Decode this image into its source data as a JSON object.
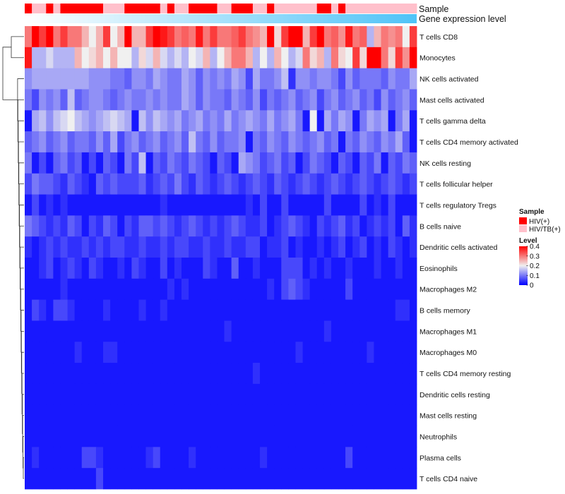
{
  "chart_data": {
    "type": "heatmap",
    "annotations": {
      "sample_label": "Sample",
      "gene_label": "Gene expression level",
      "sample_groups": [
        "HIV(+)",
        "HIV/TB(+)",
        "HIV/TB(+)",
        "HIV(+)",
        "HIV/TB(+)",
        "HIV(+)",
        "HIV(+)",
        "HIV(+)",
        "HIV(+)",
        "HIV(+)",
        "HIV(+)",
        "HIV/TB(+)",
        "HIV/TB(+)",
        "HIV/TB(+)",
        "HIV(+)",
        "HIV(+)",
        "HIV(+)",
        "HIV(+)",
        "HIV(+)",
        "HIV/TB(+)",
        "HIV(+)",
        "HIV/TB(+)",
        "HIV/TB(+)",
        "HIV(+)",
        "HIV(+)",
        "HIV(+)",
        "HIV(+)",
        "HIV/TB(+)",
        "HIV/TB(+)",
        "HIV(+)",
        "HIV(+)",
        "HIV(+)",
        "HIV/TB(+)",
        "HIV/TB(+)",
        "HIV(+)",
        "HIV/TB(+)",
        "HIV/TB(+)",
        "HIV/TB(+)",
        "HIV/TB(+)",
        "HIV/TB(+)",
        "HIV/TB(+)",
        "HIV(+)",
        "HIV(+)",
        "HIV/TB(+)",
        "HIV(+)",
        "HIV/TB(+)",
        "HIV/TB(+)",
        "HIV/TB(+)",
        "HIV/TB(+)",
        "HIV/TB(+)",
        "HIV/TB(+)",
        "HIV/TB(+)",
        "HIV/TB(+)",
        "HIV/TB(+)",
        "HIV/TB(+)"
      ]
    },
    "rows": [
      "T cells CD8",
      "Monocytes",
      "NK cells activated",
      "Mast cells activated",
      "T cells gamma delta",
      "T cells CD4 memory activated",
      "NK cells resting",
      "T cells follicular helper",
      "T cells regulatory  Tregs",
      "B cells naive",
      "Dendritic cells activated",
      "Eosinophils",
      "Macrophages M2",
      "B cells memory",
      "Macrophages M1",
      "Macrophages M0",
      "T cells CD4 memory resting",
      "Dendritic cells resting",
      "Mast cells resting",
      "Neutrophils",
      "Plasma cells",
      "T cells CD4 naive"
    ],
    "n_columns": 55,
    "values": [
      [
        0.3,
        0.4,
        0.35,
        0.4,
        0.3,
        0.35,
        0.3,
        0.3,
        0.25,
        0.2,
        0.25,
        0.35,
        0.2,
        0.25,
        0.4,
        0.25,
        0.25,
        0.35,
        0.4,
        0.38,
        0.35,
        0.3,
        0.32,
        0.3,
        0.38,
        0.3,
        0.35,
        0.3,
        0.3,
        0.32,
        0.35,
        0.3,
        0.28,
        0.25,
        0.4,
        0.22,
        0.35,
        0.4,
        0.4,
        0.25,
        0.35,
        0.4,
        0.3,
        0.32,
        0.28,
        0.38,
        0.3,
        0.32,
        0.15,
        0.25,
        0.3,
        0.28,
        0.3,
        0.2,
        0.35
      ],
      [
        0.38,
        0.15,
        0.15,
        0.18,
        0.15,
        0.15,
        0.15,
        0.25,
        0.2,
        0.22,
        0.25,
        0.2,
        0.25,
        0.2,
        0.2,
        0.15,
        0.22,
        0.18,
        0.25,
        0.18,
        0.15,
        0.18,
        0.15,
        0.2,
        0.18,
        0.25,
        0.15,
        0.2,
        0.25,
        0.3,
        0.3,
        0.25,
        0.15,
        0.2,
        0.15,
        0.25,
        0.2,
        0.15,
        0.18,
        0.3,
        0.22,
        0.25,
        0.15,
        0.3,
        0.22,
        0.2,
        0.35,
        0.22,
        0.4,
        0.4,
        0.3,
        0.22,
        0.35,
        0.28,
        0.4
      ],
      [
        0.12,
        0.14,
        0.14,
        0.14,
        0.14,
        0.14,
        0.14,
        0.14,
        0.14,
        0.12,
        0.12,
        0.12,
        0.1,
        0.1,
        0.08,
        0.12,
        0.12,
        0.1,
        0.14,
        0.12,
        0.1,
        0.1,
        0.14,
        0.12,
        0.08,
        0.12,
        0.1,
        0.12,
        0.1,
        0.14,
        0.12,
        0.06,
        0.14,
        0.1,
        0.1,
        0.12,
        0.16,
        0.04,
        0.12,
        0.12,
        0.1,
        0.12,
        0.12,
        0.1,
        0.06,
        0.12,
        0.08,
        0.1,
        0.1,
        0.1,
        0.08,
        0.12,
        0.1,
        0.1,
        0.14
      ],
      [
        0.1,
        0.06,
        0.12,
        0.1,
        0.12,
        0.08,
        0.16,
        0.08,
        0.1,
        0.12,
        0.12,
        0.1,
        0.08,
        0.1,
        0.12,
        0.1,
        0.1,
        0.12,
        0.1,
        0.12,
        0.1,
        0.1,
        0.14,
        0.12,
        0.08,
        0.12,
        0.1,
        0.1,
        0.08,
        0.12,
        0.1,
        0.08,
        0.12,
        0.06,
        0.1,
        0.08,
        0.1,
        0.12,
        0.08,
        0.1,
        0.12,
        0.06,
        0.1,
        0.12,
        0.08,
        0.1,
        0.12,
        0.08,
        0.1,
        0.06,
        0.12,
        0.08,
        0.1,
        0.12,
        0.08
      ],
      [
        0.02,
        0.14,
        0.16,
        0.12,
        0.16,
        0.18,
        0.2,
        0.16,
        0.14,
        0.12,
        0.14,
        0.16,
        0.18,
        0.16,
        0.14,
        0.02,
        0.16,
        0.12,
        0.16,
        0.14,
        0.12,
        0.14,
        0.1,
        0.12,
        0.14,
        0.1,
        0.12,
        0.1,
        0.14,
        0.1,
        0.12,
        0.14,
        0.12,
        0.1,
        0.14,
        0.1,
        0.12,
        0.14,
        0.1,
        0.02,
        0.2,
        0.02,
        0.14,
        0.1,
        0.14,
        0.12,
        0.02,
        0.1,
        0.14,
        0.12,
        0.14,
        0.02,
        0.1,
        0.14,
        0.02
      ],
      [
        0.08,
        0.1,
        0.12,
        0.08,
        0.1,
        0.12,
        0.08,
        0.1,
        0.1,
        0.08,
        0.12,
        0.08,
        0.14,
        0.06,
        0.1,
        0.12,
        0.08,
        0.1,
        0.12,
        0.08,
        0.1,
        0.12,
        0.08,
        0.16,
        0.1,
        0.08,
        0.12,
        0.08,
        0.1,
        0.1,
        0.12,
        0.02,
        0.1,
        0.08,
        0.12,
        0.1,
        0.08,
        0.12,
        0.1,
        0.08,
        0.1,
        0.12,
        0.08,
        0.1,
        0.02,
        0.1,
        0.08,
        0.12,
        0.1,
        0.08,
        0.12,
        0.1,
        0.14,
        0.08,
        0.02
      ],
      [
        0.1,
        0.02,
        0.06,
        0.02,
        0.08,
        0.1,
        0.06,
        0.08,
        0.02,
        0.06,
        0.02,
        0.08,
        0.06,
        0.02,
        0.1,
        0.06,
        0.16,
        0.02,
        0.08,
        0.06,
        0.1,
        0.08,
        0.06,
        0.1,
        0.08,
        0.06,
        0.02,
        0.08,
        0.06,
        0.02,
        0.14,
        0.12,
        0.1,
        0.06,
        0.08,
        0.1,
        0.06,
        0.08,
        0.02,
        0.06,
        0.1,
        0.08,
        0.06,
        0.02,
        0.08,
        0.06,
        0.02,
        0.08,
        0.06,
        0.1,
        0.02,
        0.08,
        0.06,
        0.1,
        0.08
      ],
      [
        0.06,
        0.1,
        0.08,
        0.08,
        0.06,
        0.04,
        0.08,
        0.06,
        0.04,
        0.02,
        0.08,
        0.06,
        0.08,
        0.06,
        0.06,
        0.06,
        0.08,
        0.04,
        0.06,
        0.08,
        0.06,
        0.1,
        0.06,
        0.04,
        0.08,
        0.06,
        0.04,
        0.06,
        0.08,
        0.06,
        0.04,
        0.06,
        0.08,
        0.06,
        0.04,
        0.08,
        0.06,
        0.04,
        0.06,
        0.08,
        0.06,
        0.04,
        0.06,
        0.08,
        0.06,
        0.04,
        0.06,
        0.08,
        0.06,
        0.04,
        0.06,
        0.08,
        0.06,
        0.04,
        0.06
      ],
      [
        0.02,
        0.06,
        0.02,
        0.04,
        0.02,
        0.04,
        0.02,
        0.02,
        0.02,
        0.02,
        0.02,
        0.02,
        0.02,
        0.02,
        0.02,
        0.02,
        0.02,
        0.02,
        0.02,
        0.04,
        0.02,
        0.02,
        0.02,
        0.02,
        0.02,
        0.02,
        0.02,
        0.02,
        0.02,
        0.02,
        0.02,
        0.04,
        0.02,
        0.06,
        0.02,
        0.02,
        0.06,
        0.02,
        0.02,
        0.02,
        0.02,
        0.02,
        0.06,
        0.02,
        0.02,
        0.02,
        0.02,
        0.06,
        0.02,
        0.04,
        0.02,
        0.06,
        0.02,
        0.02,
        0.02
      ],
      [
        0.1,
        0.08,
        0.06,
        0.04,
        0.06,
        0.04,
        0.08,
        0.06,
        0.02,
        0.06,
        0.04,
        0.08,
        0.06,
        0.02,
        0.06,
        0.04,
        0.08,
        0.08,
        0.06,
        0.08,
        0.06,
        0.04,
        0.06,
        0.08,
        0.06,
        0.04,
        0.06,
        0.04,
        0.06,
        0.08,
        0.06,
        0.04,
        0.04,
        0.06,
        0.02,
        0.04,
        0.06,
        0.08,
        0.06,
        0.04,
        0.02,
        0.06,
        0.04,
        0.06,
        0.08,
        0.04,
        0.06,
        0.02,
        0.04,
        0.06,
        0.04,
        0.06,
        0.02,
        0.08,
        0.04
      ],
      [
        0.04,
        0.02,
        0.04,
        0.06,
        0.04,
        0.06,
        0.04,
        0.04,
        0.06,
        0.04,
        0.06,
        0.04,
        0.06,
        0.06,
        0.04,
        0.04,
        0.06,
        0.04,
        0.04,
        0.06,
        0.04,
        0.06,
        0.06,
        0.04,
        0.04,
        0.06,
        0.04,
        0.04,
        0.06,
        0.04,
        0.04,
        0.06,
        0.06,
        0.02,
        0.04,
        0.04,
        0.06,
        0.02,
        0.04,
        0.02,
        0.02,
        0.04,
        0.02,
        0.04,
        0.06,
        0.02,
        0.04,
        0.06,
        0.02,
        0.04,
        0.02,
        0.06,
        0.04,
        0.02,
        0.04
      ],
      [
        0.02,
        0.02,
        0.04,
        0.06,
        0.02,
        0.04,
        0.06,
        0.04,
        0.02,
        0.06,
        0.04,
        0.02,
        0.02,
        0.04,
        0.02,
        0.06,
        0.04,
        0.02,
        0.02,
        0.06,
        0.02,
        0.04,
        0.02,
        0.02,
        0.02,
        0.06,
        0.04,
        0.02,
        0.02,
        0.08,
        0.02,
        0.02,
        0.04,
        0.02,
        0.02,
        0.02,
        0.06,
        0.06,
        0.06,
        0.02,
        0.04,
        0.02,
        0.04,
        0.02,
        0.02,
        0.04,
        0.02,
        0.02,
        0.02,
        0.04,
        0.02,
        0.02,
        0.04,
        0.02,
        0.02
      ],
      [
        0.02,
        0.02,
        0.02,
        0.02,
        0.02,
        0.04,
        0.02,
        0.02,
        0.02,
        0.02,
        0.02,
        0.02,
        0.02,
        0.02,
        0.02,
        0.02,
        0.02,
        0.02,
        0.02,
        0.02,
        0.04,
        0.02,
        0.04,
        0.02,
        0.02,
        0.02,
        0.02,
        0.02,
        0.02,
        0.02,
        0.02,
        0.02,
        0.02,
        0.02,
        0.04,
        0.02,
        0.06,
        0.08,
        0.06,
        0.04,
        0.02,
        0.02,
        0.02,
        0.02,
        0.02,
        0.06,
        0.02,
        0.02,
        0.02,
        0.02,
        0.02,
        0.02,
        0.02,
        0.02,
        0.02
      ],
      [
        0.02,
        0.06,
        0.04,
        0.02,
        0.06,
        0.06,
        0.04,
        0.02,
        0.02,
        0.02,
        0.02,
        0.04,
        0.02,
        0.02,
        0.02,
        0.02,
        0.04,
        0.02,
        0.02,
        0.04,
        0.02,
        0.02,
        0.02,
        0.02,
        0.02,
        0.02,
        0.02,
        0.02,
        0.02,
        0.02,
        0.02,
        0.02,
        0.02,
        0.02,
        0.02,
        0.02,
        0.02,
        0.02,
        0.02,
        0.02,
        0.02,
        0.02,
        0.02,
        0.02,
        0.02,
        0.02,
        0.02,
        0.02,
        0.02,
        0.02,
        0.02,
        0.02,
        0.04,
        0.04,
        0.02
      ],
      [
        0.02,
        0.02,
        0.02,
        0.02,
        0.02,
        0.02,
        0.02,
        0.02,
        0.02,
        0.02,
        0.02,
        0.02,
        0.02,
        0.02,
        0.02,
        0.02,
        0.02,
        0.02,
        0.02,
        0.02,
        0.02,
        0.02,
        0.02,
        0.02,
        0.02,
        0.02,
        0.02,
        0.02,
        0.04,
        0.02,
        0.02,
        0.02,
        0.02,
        0.02,
        0.02,
        0.02,
        0.02,
        0.02,
        0.02,
        0.02,
        0.02,
        0.02,
        0.04,
        0.02,
        0.02,
        0.02,
        0.02,
        0.02,
        0.02,
        0.02,
        0.02,
        0.02,
        0.02,
        0.02,
        0.02
      ],
      [
        0.02,
        0.02,
        0.02,
        0.02,
        0.02,
        0.02,
        0.02,
        0.04,
        0.02,
        0.02,
        0.02,
        0.04,
        0.04,
        0.02,
        0.02,
        0.02,
        0.02,
        0.02,
        0.02,
        0.02,
        0.02,
        0.02,
        0.02,
        0.02,
        0.02,
        0.02,
        0.02,
        0.02,
        0.02,
        0.02,
        0.02,
        0.02,
        0.02,
        0.02,
        0.02,
        0.02,
        0.02,
        0.02,
        0.04,
        0.02,
        0.02,
        0.02,
        0.02,
        0.02,
        0.02,
        0.02,
        0.02,
        0.02,
        0.04,
        0.02,
        0.02,
        0.02,
        0.02,
        0.02,
        0.02
      ],
      [
        0.02,
        0.02,
        0.02,
        0.02,
        0.02,
        0.02,
        0.02,
        0.02,
        0.02,
        0.02,
        0.02,
        0.02,
        0.02,
        0.02,
        0.02,
        0.02,
        0.02,
        0.02,
        0.02,
        0.02,
        0.02,
        0.02,
        0.02,
        0.02,
        0.02,
        0.02,
        0.02,
        0.02,
        0.02,
        0.02,
        0.02,
        0.02,
        0.04,
        0.02,
        0.02,
        0.02,
        0.02,
        0.02,
        0.02,
        0.02,
        0.02,
        0.02,
        0.02,
        0.02,
        0.02,
        0.02,
        0.02,
        0.02,
        0.02,
        0.02,
        0.02,
        0.02,
        0.02,
        0.02,
        0.02
      ],
      [
        0.02,
        0.02,
        0.02,
        0.02,
        0.02,
        0.02,
        0.02,
        0.02,
        0.02,
        0.02,
        0.02,
        0.02,
        0.02,
        0.02,
        0.02,
        0.02,
        0.02,
        0.02,
        0.02,
        0.02,
        0.02,
        0.02,
        0.02,
        0.02,
        0.02,
        0.02,
        0.02,
        0.02,
        0.02,
        0.02,
        0.02,
        0.02,
        0.02,
        0.02,
        0.02,
        0.02,
        0.02,
        0.02,
        0.02,
        0.02,
        0.02,
        0.02,
        0.02,
        0.02,
        0.02,
        0.02,
        0.02,
        0.02,
        0.02,
        0.02,
        0.02,
        0.02,
        0.02,
        0.02,
        0.02
      ],
      [
        0.02,
        0.02,
        0.02,
        0.02,
        0.02,
        0.02,
        0.02,
        0.02,
        0.02,
        0.02,
        0.02,
        0.02,
        0.02,
        0.02,
        0.02,
        0.02,
        0.02,
        0.02,
        0.02,
        0.02,
        0.02,
        0.02,
        0.02,
        0.02,
        0.02,
        0.02,
        0.02,
        0.02,
        0.02,
        0.02,
        0.02,
        0.02,
        0.02,
        0.02,
        0.02,
        0.02,
        0.02,
        0.02,
        0.02,
        0.02,
        0.02,
        0.02,
        0.02,
        0.02,
        0.02,
        0.02,
        0.02,
        0.02,
        0.02,
        0.02,
        0.02,
        0.02,
        0.02,
        0.02,
        0.02
      ],
      [
        0.02,
        0.02,
        0.02,
        0.02,
        0.02,
        0.02,
        0.02,
        0.02,
        0.02,
        0.02,
        0.02,
        0.02,
        0.02,
        0.02,
        0.02,
        0.02,
        0.02,
        0.02,
        0.02,
        0.02,
        0.02,
        0.02,
        0.02,
        0.02,
        0.02,
        0.02,
        0.02,
        0.02,
        0.02,
        0.02,
        0.02,
        0.02,
        0.02,
        0.02,
        0.02,
        0.02,
        0.02,
        0.02,
        0.02,
        0.02,
        0.02,
        0.02,
        0.02,
        0.02,
        0.02,
        0.02,
        0.02,
        0.02,
        0.02,
        0.02,
        0.02,
        0.02,
        0.02,
        0.02,
        0.02
      ],
      [
        0.02,
        0.04,
        0.02,
        0.02,
        0.02,
        0.02,
        0.02,
        0.02,
        0.06,
        0.06,
        0.04,
        0.02,
        0.02,
        0.02,
        0.02,
        0.02,
        0.02,
        0.04,
        0.06,
        0.02,
        0.02,
        0.02,
        0.02,
        0.04,
        0.02,
        0.02,
        0.02,
        0.02,
        0.02,
        0.02,
        0.02,
        0.02,
        0.02,
        0.04,
        0.02,
        0.02,
        0.02,
        0.02,
        0.02,
        0.02,
        0.02,
        0.02,
        0.02,
        0.02,
        0.02,
        0.06,
        0.02,
        0.02,
        0.02,
        0.02,
        0.02,
        0.02,
        0.02,
        0.02,
        0.02
      ],
      [
        0.02,
        0.02,
        0.02,
        0.02,
        0.02,
        0.02,
        0.02,
        0.02,
        0.02,
        0.02,
        0.06,
        0.02,
        0.02,
        0.02,
        0.02,
        0.02,
        0.02,
        0.02,
        0.02,
        0.02,
        0.02,
        0.02,
        0.02,
        0.02,
        0.02,
        0.02,
        0.02,
        0.02,
        0.02,
        0.02,
        0.02,
        0.02,
        0.02,
        0.02,
        0.02,
        0.02,
        0.02,
        0.02,
        0.02,
        0.02,
        0.02,
        0.02,
        0.02,
        0.02,
        0.02,
        0.02,
        0.02,
        0.02,
        0.02,
        0.02,
        0.02,
        0.02,
        0.02,
        0.02,
        0.02
      ]
    ],
    "color_scale": {
      "min": 0,
      "mid": 0.2,
      "max": 0.4,
      "low": "#0000ff",
      "midcolor": "#f0f0f0",
      "high": "#ff0000"
    },
    "legend": {
      "sample_title": "Sample",
      "sample_items": [
        {
          "label": "HIV(+)",
          "color": "#ff0000"
        },
        {
          "label": "HIV/TB(+)",
          "color": "#ffc0cb"
        }
      ],
      "level_title": "Level",
      "level_ticks": [
        "0.4",
        "0.3",
        "0.2",
        "0.1",
        "0"
      ]
    },
    "gene_bar_colors": [
      "#ffffff",
      "#4fc3f7"
    ]
  }
}
